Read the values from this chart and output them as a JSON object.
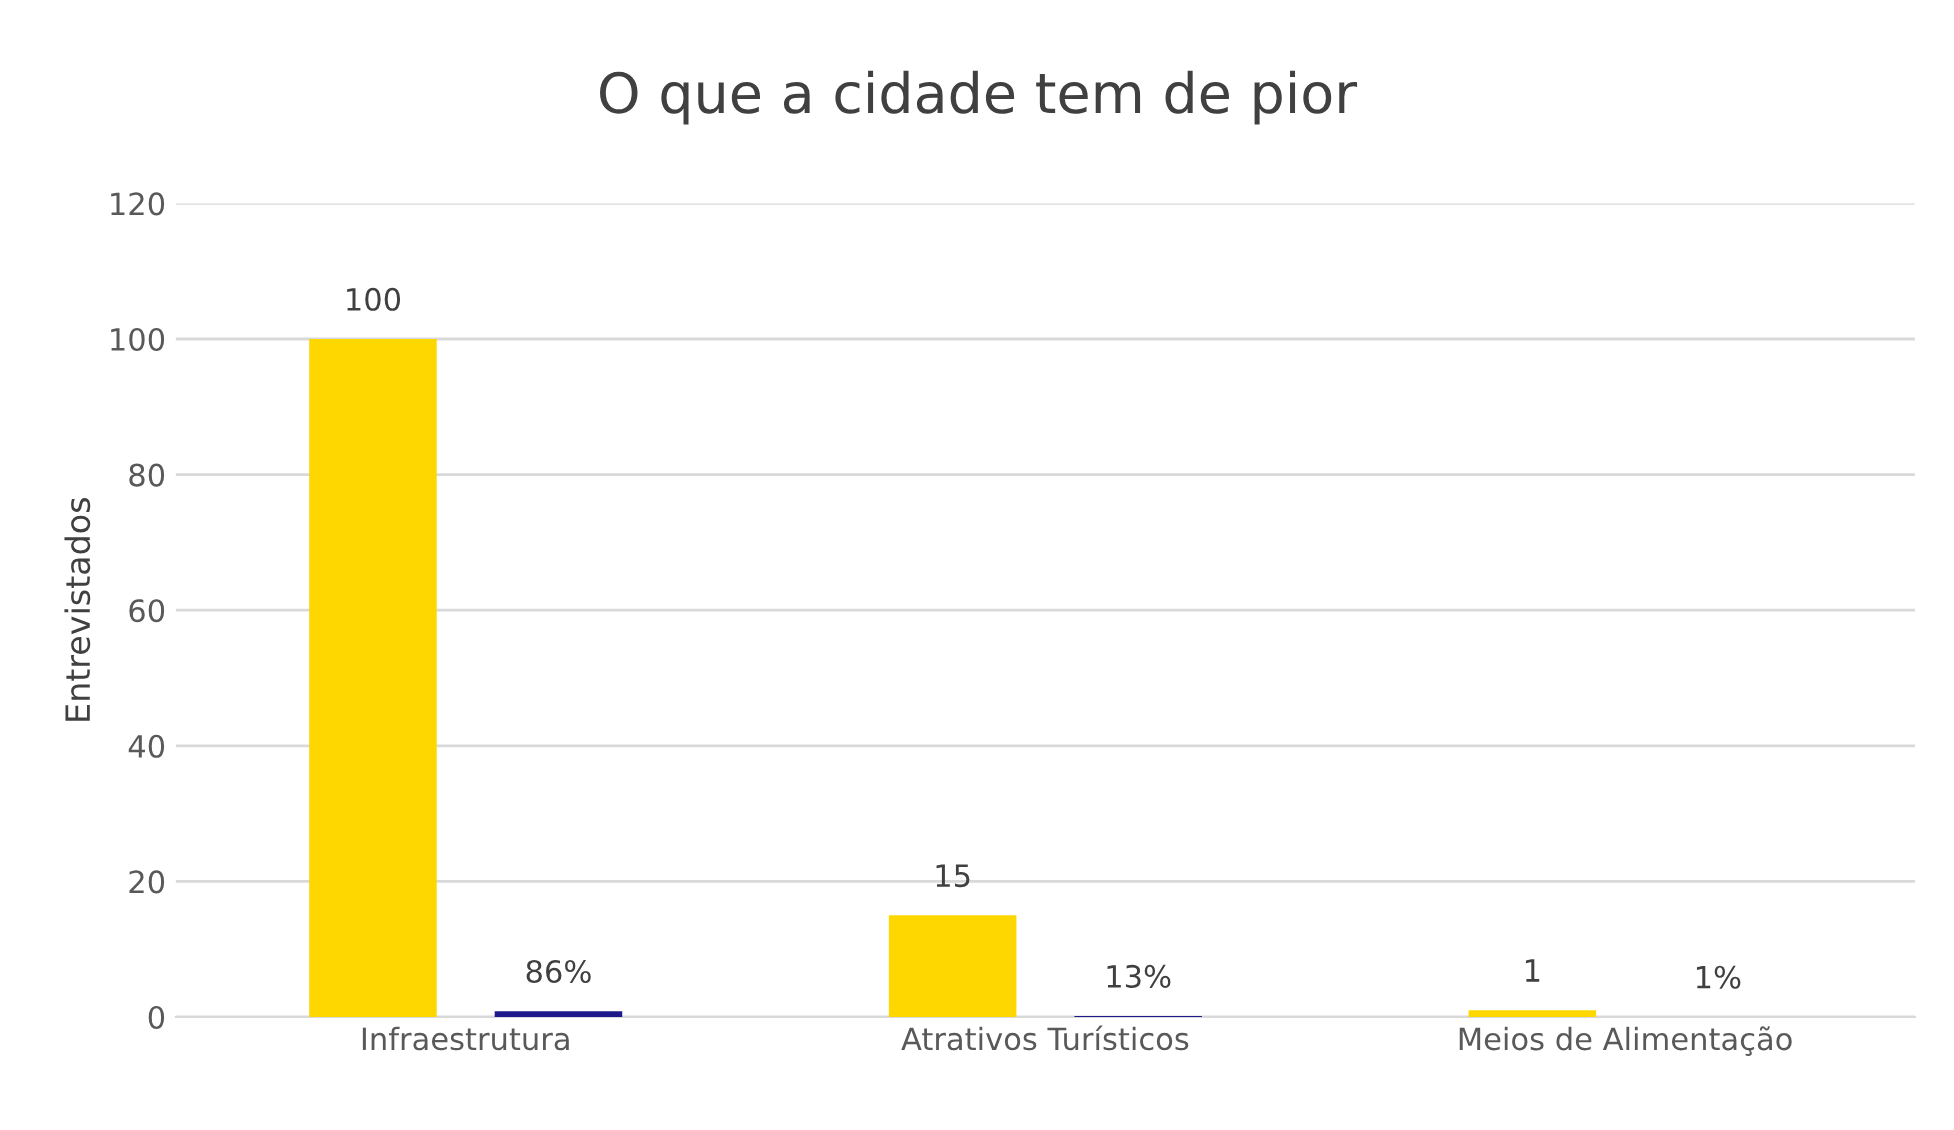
{
  "chart_data": {
    "type": "bar",
    "title": "O que a cidade tem de pior",
    "ylabel": "Entrevistados",
    "categories": [
      "Infraestrutura",
      "Atrativos Turísticos",
      "Meios de Alimentação"
    ],
    "series": [
      {
        "color": "#ffd700",
        "values": [
          100,
          15,
          1
        ],
        "value_labels": [
          "100",
          "15",
          "1"
        ]
      },
      {
        "color": "#1f1a8c",
        "values": [
          0.86,
          0.13,
          0.01
        ],
        "value_labels": [
          "86%",
          "13%",
          "1%"
        ]
      }
    ],
    "ylim": [
      0,
      120
    ],
    "yticks": [
      0,
      20,
      40,
      60,
      80,
      100,
      120
    ],
    "grid": "y",
    "legend": false
  }
}
